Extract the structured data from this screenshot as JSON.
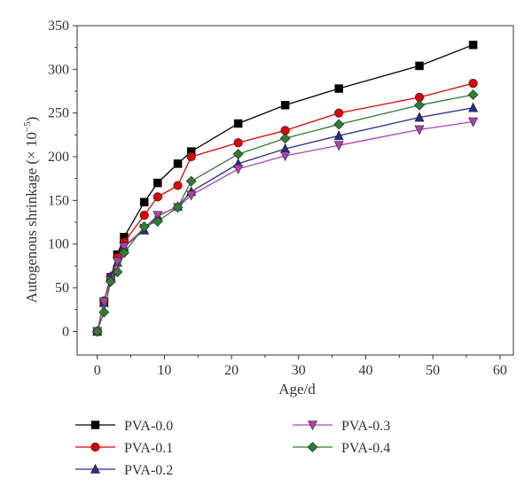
{
  "chart_data": {
    "type": "line",
    "xlabel": "Age/d",
    "ylabel_main": "Autogenous shrinkage (× 10",
    "ylabel_exp": "−5",
    "ylabel_close": ")",
    "xlim": [
      -3,
      62
    ],
    "ylim": [
      -27,
      350
    ],
    "xticks": [
      0,
      10,
      20,
      30,
      40,
      50,
      60
    ],
    "yticks": [
      0,
      50,
      100,
      150,
      200,
      250,
      300,
      350
    ],
    "grid": false,
    "legend_position": "bottom",
    "series": [
      {
        "name": "PVA-0.0",
        "color": "#000000",
        "marker": "square",
        "x": [
          0,
          1,
          2,
          3,
          4,
          7,
          9,
          12,
          14,
          21,
          28,
          36,
          48,
          56
        ],
        "y": [
          0,
          33,
          62,
          88,
          108,
          148,
          170,
          192,
          206,
          238,
          259,
          278,
          304,
          328
        ]
      },
      {
        "name": "PVA-0.1",
        "color": "#e00000",
        "marker": "circle",
        "x": [
          0,
          1,
          2,
          3,
          4,
          7,
          9,
          12,
          14,
          21,
          28,
          36,
          48,
          56
        ],
        "y": [
          0,
          35,
          62,
          85,
          102,
          133,
          154,
          167,
          200,
          216,
          230,
          250,
          268,
          284
        ]
      },
      {
        "name": "PVA-0.2",
        "color": "#2a2a8c",
        "marker": "triangle-up",
        "x": [
          0,
          1,
          2,
          3,
          4,
          7,
          9,
          12,
          14,
          21,
          28,
          36,
          48,
          56
        ],
        "y": [
          0,
          33,
          63,
          79,
          97,
          116,
          132,
          143,
          160,
          192,
          209,
          224,
          245,
          256
        ]
      },
      {
        "name": "PVA-0.3",
        "color": "#b040b0",
        "marker": "triangle-down",
        "x": [
          0,
          1,
          2,
          3,
          4,
          7,
          9,
          12,
          14,
          21,
          28,
          36,
          48,
          56
        ],
        "y": [
          0,
          34,
          58,
          80,
          97,
          118,
          133,
          142,
          156,
          186,
          201,
          213,
          231,
          240
        ]
      },
      {
        "name": "PVA-0.4",
        "color": "#2e7d32",
        "marker": "diamond",
        "x": [
          0,
          1,
          2,
          3,
          4,
          7,
          9,
          12,
          14,
          21,
          28,
          36,
          48,
          56
        ],
        "y": [
          0,
          22,
          57,
          68,
          90,
          120,
          126,
          142,
          172,
          203,
          221,
          237,
          259,
          271
        ]
      }
    ]
  }
}
